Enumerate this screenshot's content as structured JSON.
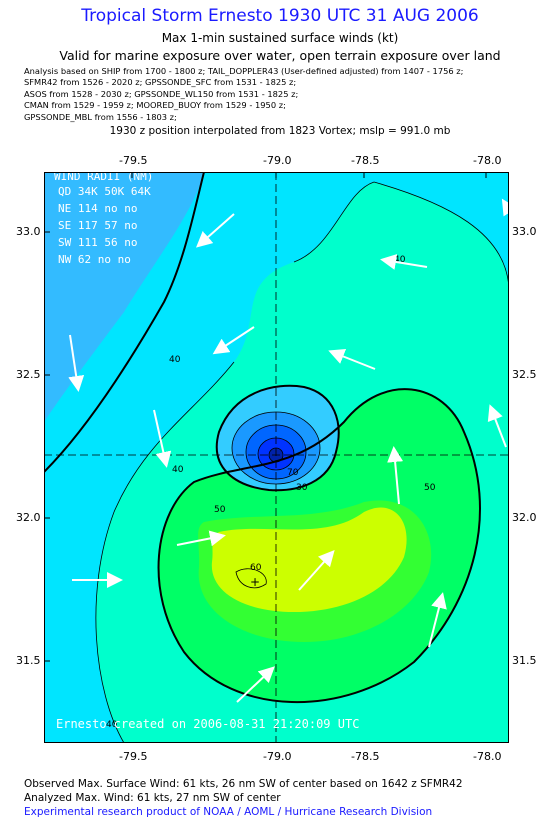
{
  "header": {
    "title": "Tropical Storm Ernesto 1930 UTC 31 AUG 2006",
    "subtitle": "Max 1-min sustained surface winds (kt)",
    "valid_line": "Valid for marine exposure over water, open terrain exposure over land",
    "analysis_lines": [
      "Analysis based on  SHIP from 1700 - 1800 z;  TAIL_DOPPLER43 (User-defined adjusted) from 1407 - 1756 z;",
      "SFMR42 from 1526 - 2020 z;  GPSSONDE_SFC from 1531 - 1825 z;",
      "ASOS from 1528 - 2030 z;  GPSSONDE_WL150 from 1531 - 1825 z;",
      "CMAN from 1529 - 1959 z;  MOORED_BUOY from 1529 - 1950 z;",
      "GPSSONDE_MBL from 1556 - 1803 z;"
    ],
    "position_line": "1930 z position interpolated from 1823 Vortex; mslp = 991.0 mb"
  },
  "map": {
    "lon_ticks": [
      "-79.5",
      "-79.0",
      "-78.5",
      "-78.0"
    ],
    "lat_ticks": [
      "33.0",
      "32.5",
      "32.0",
      "31.5"
    ],
    "lon_range": [
      -79.85,
      -77.95
    ],
    "lat_range": [
      31.25,
      33.2
    ],
    "center": {
      "lon": -78.9,
      "lat": 32.22
    },
    "max_wind_marker": {
      "lon": -79.07,
      "lat": 31.81
    },
    "contour_labels": [
      "40",
      "40",
      "40",
      "40",
      "50",
      "50",
      "60",
      "30",
      "70"
    ],
    "colors": {
      "land": "#33bbff",
      "low": "#00e5ff",
      "c40": "#00ffcc",
      "c50": "#00ff66",
      "c60": "#33ff33",
      "c70": "#ccff00",
      "eye_outer": "#33ccff",
      "eye_mid": "#1a99ff",
      "eye_inner": "#0066ff",
      "eye_core": "#0033ff"
    },
    "wind_radii": {
      "title": "WIND RADII (NM)",
      "header": "QD 34K 50K 64K",
      "rows": [
        "NE 114  no  no",
        "SE 117  57  no",
        "SW 111  56  no",
        "NW  62  no  no"
      ]
    },
    "credit": "Ernesto   created on 2006-08-31 21:20:09 UTC"
  },
  "footer": {
    "observed": "Observed Max. Surface Wind: 61 kts, 26 nm SW of center based on 1642 z SFMR42",
    "analyzed": "Analyzed Max. Wind: 61 kts, 27 nm SW of center",
    "product": "Experimental research product of NOAA / AOML / Hurricane Research Division"
  }
}
